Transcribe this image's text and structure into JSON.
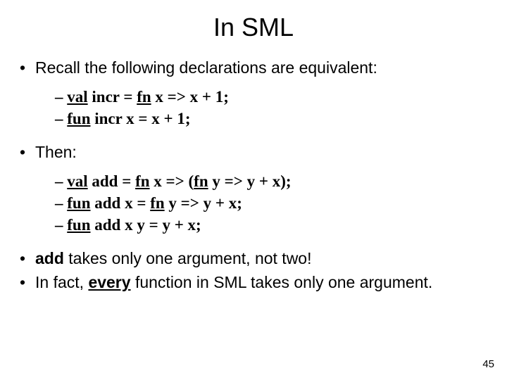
{
  "title": "In SML",
  "bullet1": "Recall the following declarations are equivalent:",
  "code1_line1_dash": "– ",
  "code1_line1_kw": "val",
  "code1_line1_rest": " incr = ",
  "code1_line1_fn": "fn",
  "code1_line1_tail": " x => x + 1;",
  "code1_line2_dash": "– ",
  "code1_line2_kw": "fun",
  "code1_line2_rest": " incr x = x + 1;",
  "bullet2": "Then:",
  "code2_line1_dash": "– ",
  "code2_line1_kw": "val",
  "code2_line1_a": " add = ",
  "code2_line1_fn1": "fn",
  "code2_line1_b": " x => (",
  "code2_line1_fn2": "fn",
  "code2_line1_c": " y => y + x);",
  "code2_line2_dash": "– ",
  "code2_line2_kw": "fun",
  "code2_line2_a": " add x = ",
  "code2_line2_fn": "fn",
  "code2_line2_b": " y => y + x;",
  "code2_line3_dash": "– ",
  "code2_line3_kw": "fun",
  "code2_line3_rest": " add x y = y + x;",
  "bullet3_bold": "add",
  "bullet3_rest": " takes only one argument, not two!",
  "bullet4_a": "In fact, ",
  "bullet4_every": "every",
  "bullet4_b": " function in SML takes only one argument.",
  "pagenum": "45"
}
